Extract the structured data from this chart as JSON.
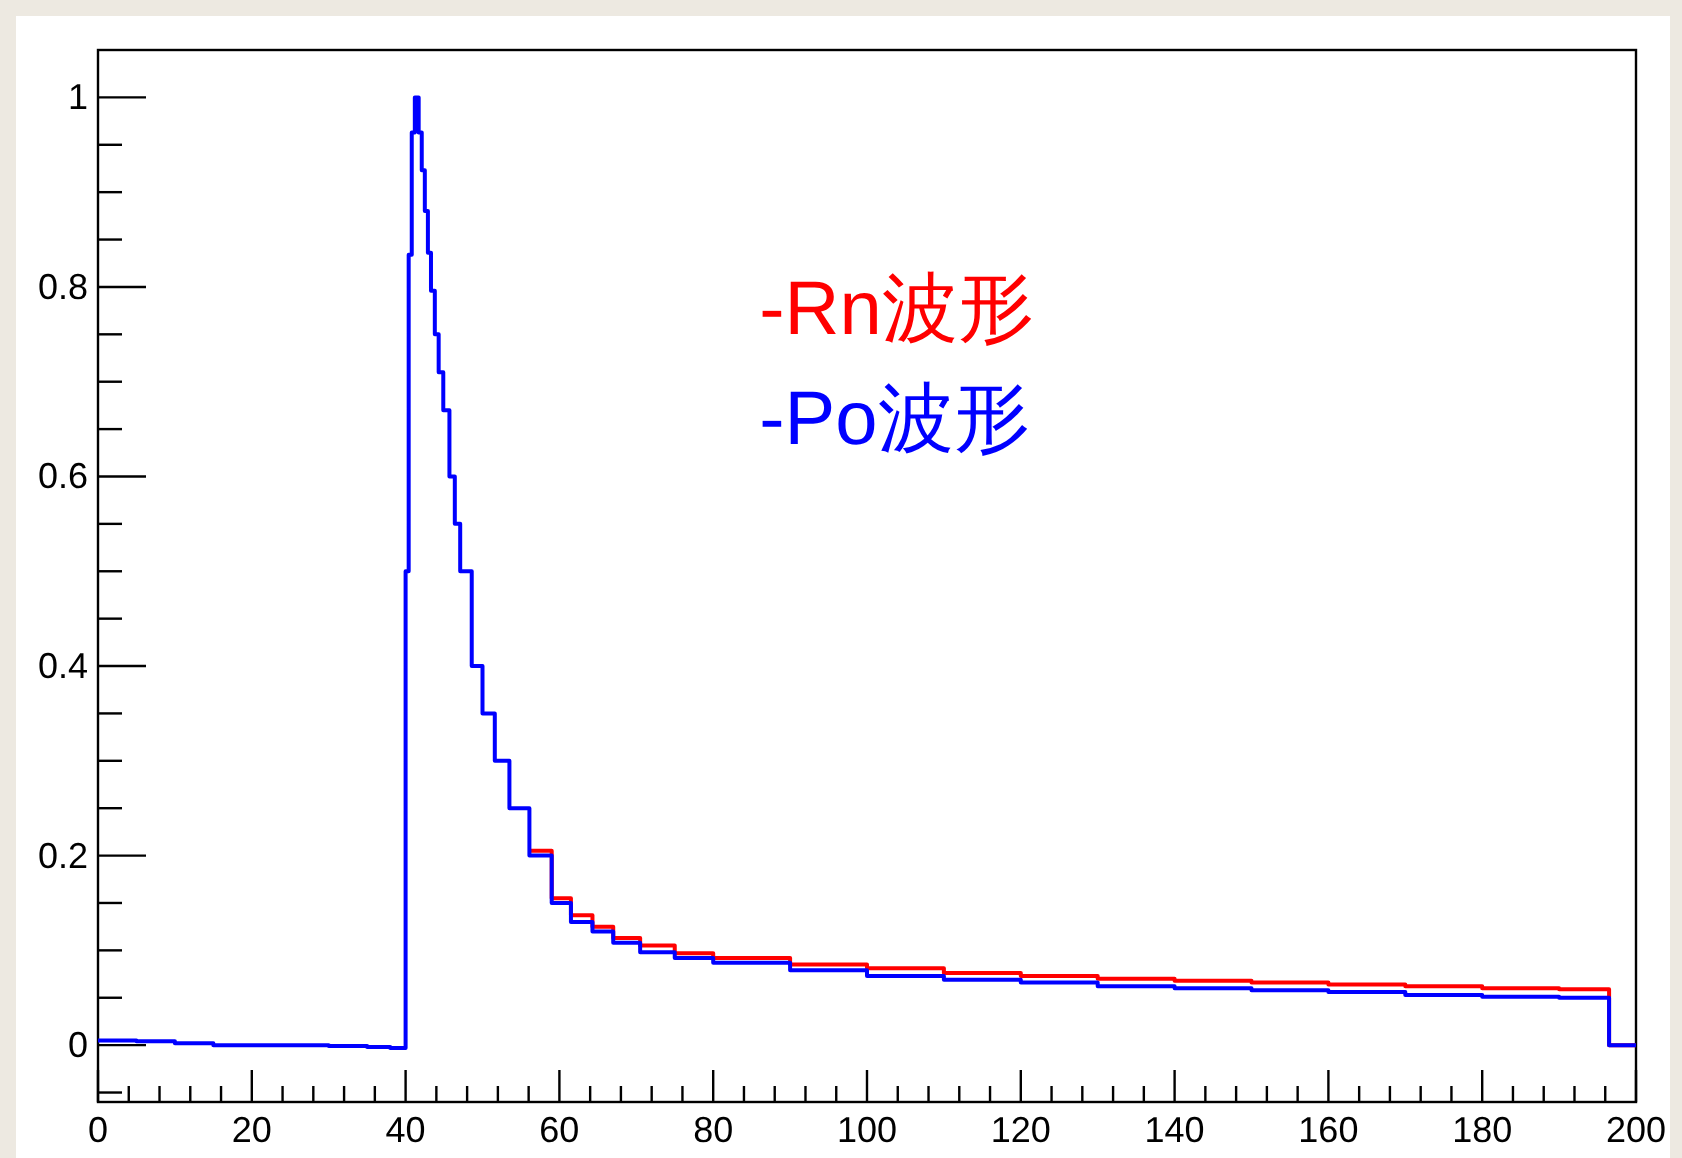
{
  "chart_data": {
    "type": "step",
    "series": [
      {
        "name": "-Rn波形",
        "color": "#ff0000",
        "x": [
          56.1,
          59,
          61.5,
          64.3,
          67,
          70.5,
          75,
          80,
          90,
          100,
          110,
          120,
          130,
          140,
          150,
          160,
          170,
          180,
          190,
          196.5,
          200
        ],
        "values": [
          0.205,
          0.155,
          0.137,
          0.125,
          0.113,
          0.105,
          0.097,
          0.092,
          0.085,
          0.081,
          0.076,
          0.073,
          0.07,
          0.068,
          0.066,
          0.064,
          0.062,
          0.06,
          0.059,
          0.0,
          0.0
        ]
      },
      {
        "name": "-Po波形",
        "color": "#0000ff",
        "x": [
          0,
          5,
          10,
          15,
          20,
          25,
          30,
          35,
          38,
          40,
          40.4,
          40.8,
          41.2,
          41.7,
          42.1,
          42.5,
          42.9,
          43.3,
          43.8,
          44.3,
          44.9,
          45.7,
          46.4,
          47.1,
          48.6,
          50,
          51.6,
          53.5,
          56.1,
          59,
          61.5,
          64.3,
          67,
          70.5,
          75,
          80,
          90,
          100,
          110,
          120,
          130,
          140,
          150,
          160,
          170,
          180,
          190,
          196.5,
          200
        ],
        "values": [
          0.005,
          0.004,
          0.002,
          0.0,
          0.0,
          0.0,
          -0.001,
          -0.002,
          -0.003,
          0.5,
          0.834,
          0.963,
          1.0,
          0.963,
          0.923,
          0.88,
          0.836,
          0.796,
          0.75,
          0.71,
          0.67,
          0.6,
          0.55,
          0.5,
          0.4,
          0.35,
          0.3,
          0.25,
          0.2,
          0.15,
          0.13,
          0.12,
          0.108,
          0.098,
          0.092,
          0.087,
          0.079,
          0.073,
          0.069,
          0.066,
          0.062,
          0.06,
          0.058,
          0.056,
          0.053,
          0.051,
          0.05,
          0.0,
          0.0
        ]
      }
    ],
    "xlim": [
      0,
      200
    ],
    "ylim": [
      -0.06,
      1.05
    ],
    "xticks": [
      0,
      {
        "value": 4,
        "label": null
      },
      {
        "value": 8,
        "label": null
      },
      {
        "value": 12,
        "label": null
      },
      {
        "value": 16,
        "label": null
      },
      20,
      {
        "value": 24,
        "label": null
      },
      {
        "value": 28,
        "label": null
      },
      {
        "value": 32,
        "label": null
      },
      {
        "value": 36,
        "label": null
      },
      40,
      {
        "value": 44,
        "label": null
      },
      {
        "value": 48,
        "label": null
      },
      {
        "value": 52,
        "label": null
      },
      {
        "value": 56,
        "label": null
      },
      60,
      {
        "value": 64,
        "label": null
      },
      {
        "value": 68,
        "label": null
      },
      {
        "value": 72,
        "label": null
      },
      {
        "value": 76,
        "label": null
      },
      80,
      {
        "value": 84,
        "label": null
      },
      {
        "value": 88,
        "label": null
      },
      {
        "value": 92,
        "label": null
      },
      {
        "value": 96,
        "label": null
      },
      100,
      {
        "value": 104,
        "label": null
      },
      {
        "value": 108,
        "label": null
      },
      {
        "value": 112,
        "label": null
      },
      {
        "value": 116,
        "label": null
      },
      120,
      {
        "value": 124,
        "label": null
      },
      {
        "value": 128,
        "label": null
      },
      {
        "value": 132,
        "label": null
      },
      {
        "value": 136,
        "label": null
      },
      140,
      {
        "value": 144,
        "label": null
      },
      {
        "value": 148,
        "label": null
      },
      {
        "value": 152,
        "label": null
      },
      {
        "value": 156,
        "label": null
      },
      160,
      {
        "value": 164,
        "label": null
      },
      {
        "value": 168,
        "label": null
      },
      {
        "value": 172,
        "label": null
      },
      {
        "value": 176,
        "label": null
      },
      180,
      {
        "value": 184,
        "label": null
      },
      {
        "value": 188,
        "label": null
      },
      {
        "value": 192,
        "label": null
      },
      {
        "value": 196,
        "label": null
      },
      200
    ],
    "yticks": [
      {
        "value": -0.05,
        "label": null
      },
      0,
      {
        "value": 0.05,
        "label": null
      },
      {
        "value": 0.1,
        "label": null
      },
      {
        "value": 0.15,
        "label": null
      },
      0.2,
      {
        "value": 0.25,
        "label": null
      },
      {
        "value": 0.3,
        "label": null
      },
      {
        "value": 0.35,
        "label": null
      },
      0.4,
      {
        "value": 0.45,
        "label": null
      },
      {
        "value": 0.5,
        "label": null
      },
      {
        "value": 0.55,
        "label": null
      },
      0.6,
      {
        "value": 0.65,
        "label": null
      },
      {
        "value": 0.7,
        "label": null
      },
      {
        "value": 0.75,
        "label": null
      },
      0.8,
      {
        "value": 0.85,
        "label": null
      },
      {
        "value": 0.9,
        "label": null
      },
      {
        "value": 0.95,
        "label": null
      },
      1
    ],
    "legend": "top",
    "grid": false
  }
}
